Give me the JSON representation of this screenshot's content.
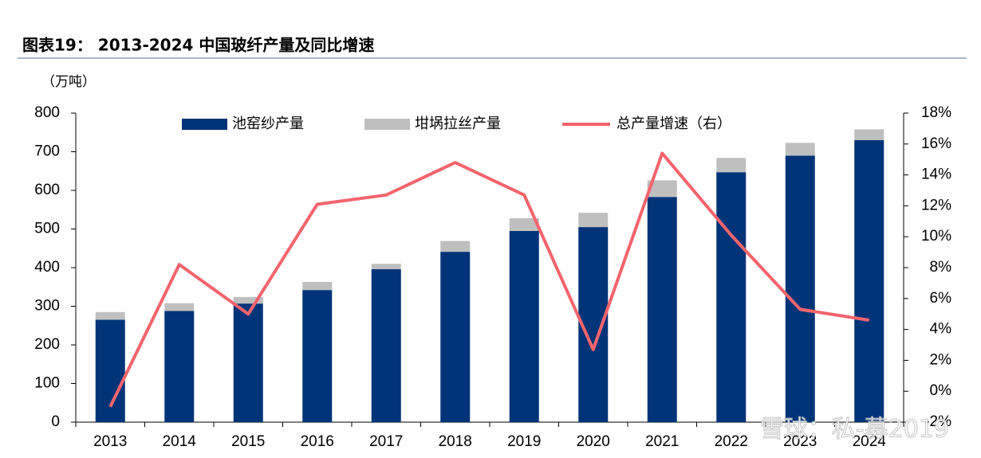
{
  "chart_data": {
    "type": "bar",
    "title": "图表19： 2013-2024 中国玻纤产量及同比增速",
    "y_label": "（万吨）",
    "watermark": "雪球：私-募2019",
    "categories": [
      "2013",
      "2014",
      "2015",
      "2016",
      "2017",
      "2018",
      "2019",
      "2020",
      "2021",
      "2022",
      "2023",
      "2024"
    ],
    "series": [
      {
        "name": "池窑纱产量",
        "type": "bar",
        "color": "#003478",
        "values": [
          265,
          288,
          307,
          342,
          396,
          441,
          495,
          505,
          583,
          647,
          690,
          730
        ]
      },
      {
        "name": "坩埚拉丝产量",
        "type": "bar",
        "color": "#bfbfbf",
        "values": [
          20,
          20,
          17,
          21,
          14,
          28,
          33,
          37,
          43,
          37,
          33,
          28
        ]
      },
      {
        "name": "总产量增速（右）",
        "type": "line",
        "axis": "y2",
        "color": "#f4646c",
        "values": [
          -1.0,
          8.2,
          5.0,
          12.1,
          12.7,
          14.8,
          12.7,
          2.7,
          15.4,
          10.1,
          5.3,
          4.6
        ]
      }
    ],
    "ylim": [
      0,
      800
    ],
    "yticks": [
      0,
      100,
      200,
      300,
      400,
      500,
      600,
      700,
      800
    ],
    "y2lim": [
      -2,
      18
    ],
    "y2ticks": [
      {
        "value": -2,
        "label": "-2%"
      },
      {
        "value": 0,
        "label": "0%"
      },
      {
        "value": 2,
        "label": "2%"
      },
      {
        "value": 4,
        "label": "4%"
      },
      {
        "value": 6,
        "label": "6%"
      },
      {
        "value": 8,
        "label": "8%"
      },
      {
        "value": 10,
        "label": "10%"
      },
      {
        "value": 12,
        "label": "12%"
      },
      {
        "value": 14,
        "label": "14%"
      },
      {
        "value": 16,
        "label": "16%"
      },
      {
        "value": 18,
        "label": "18%"
      }
    ],
    "grid": false
  }
}
